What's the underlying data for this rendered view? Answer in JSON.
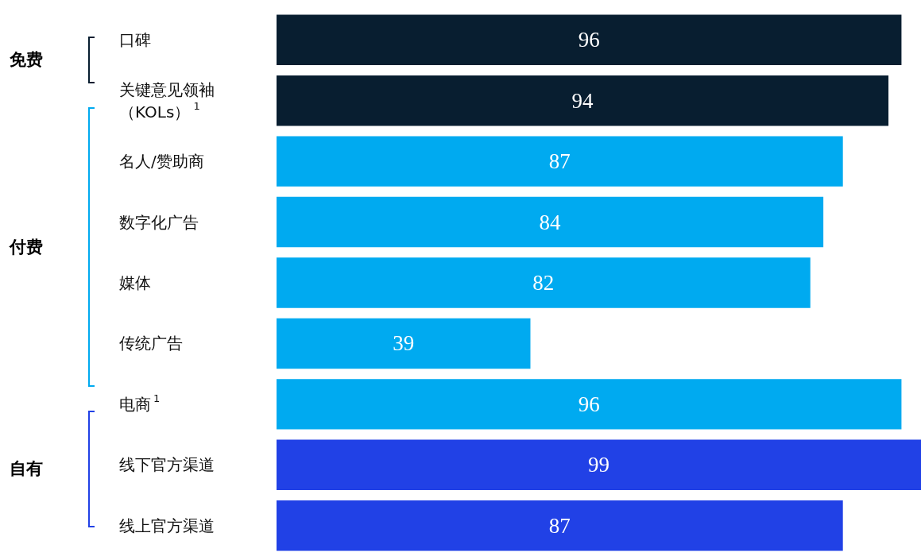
{
  "chart_data": {
    "type": "bar",
    "orientation": "horizontal",
    "categories": [
      "口碑",
      "关键意见领袖（KOLs）$^{1}$",
      "名人/赞助商",
      "数字化广告",
      "媒体",
      "传统广告",
      "电商$^{1}$",
      "线下官方渠道",
      "线上官方渠道"
    ],
    "values": [
      96,
      94,
      87,
      84,
      82,
      39,
      96,
      99,
      87
    ],
    "colors": [
      "#081e30",
      "#081e30",
      "#00aaf0",
      "#00aaf0",
      "#00aaf0",
      "#00aaf0",
      "#00aaf0",
      "#2141e6",
      "#2141e6"
    ],
    "data_labels": true,
    "annotations": [
      "免费",
      "付费",
      "自有"
    ]
  }
}
